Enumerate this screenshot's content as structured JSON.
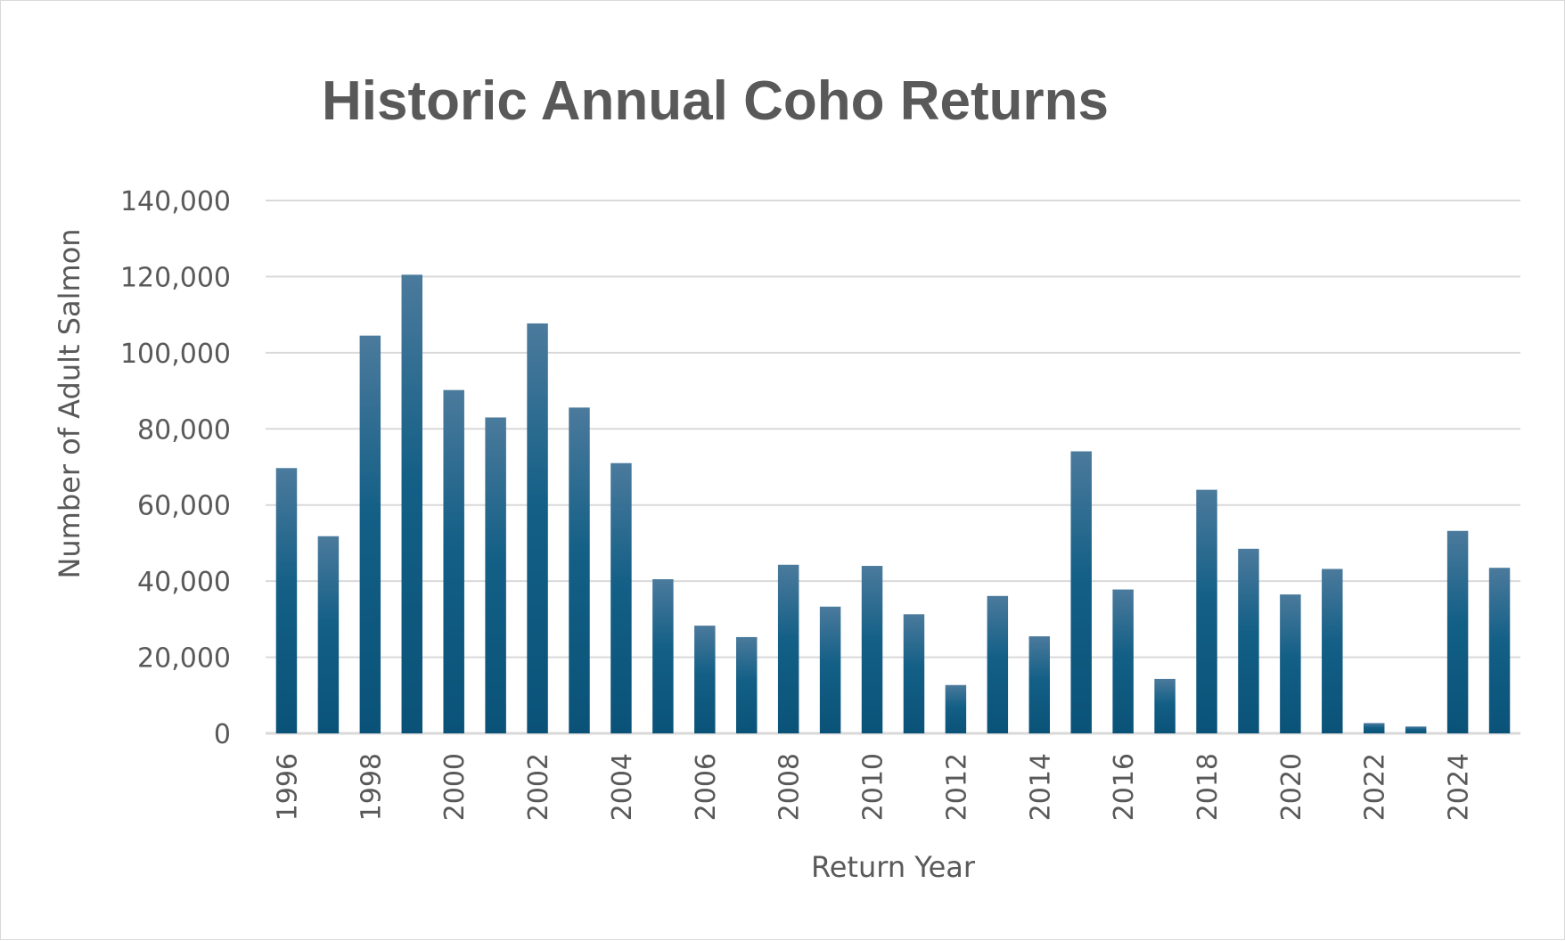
{
  "chart_data": {
    "type": "bar",
    "title": "Historic Annual Coho Returns",
    "xlabel": "Return Year",
    "ylabel": "Number of Adult Salmon",
    "ylim": [
      0,
      140000
    ],
    "yticks": [
      0,
      20000,
      40000,
      60000,
      80000,
      100000,
      120000,
      140000
    ],
    "ytick_labels": [
      "0",
      "20,000",
      "40,000",
      "60,000",
      "80,000",
      "100,000",
      "120,000",
      "140,000"
    ],
    "categories": [
      "1996",
      "1997",
      "1998",
      "1999",
      "2000",
      "2001",
      "2002",
      "2003",
      "2004",
      "2005",
      "2006",
      "2007",
      "2008",
      "2009",
      "2010",
      "2011",
      "2012",
      "2013",
      "2014",
      "2015",
      "2016",
      "2017",
      "2018",
      "2019",
      "2020",
      "2021",
      "2022",
      "2023",
      "2024",
      "2025"
    ],
    "xtick_labels": [
      "1996",
      "1998",
      "2000",
      "2002",
      "2004",
      "2006",
      "2008",
      "2010",
      "2012",
      "2014",
      "2016",
      "2018",
      "2020",
      "2022",
      "2024"
    ],
    "values": [
      69700,
      51800,
      104500,
      120500,
      90200,
      83000,
      107700,
      85600,
      71000,
      40500,
      28300,
      25300,
      44300,
      33300,
      44000,
      31300,
      12700,
      36100,
      25500,
      74100,
      37800,
      14300,
      64000,
      48500,
      36500,
      43200,
      2700,
      1800,
      53200,
      43500
    ],
    "grid": true,
    "legend": "none",
    "bar_color": "#1f5f87"
  }
}
